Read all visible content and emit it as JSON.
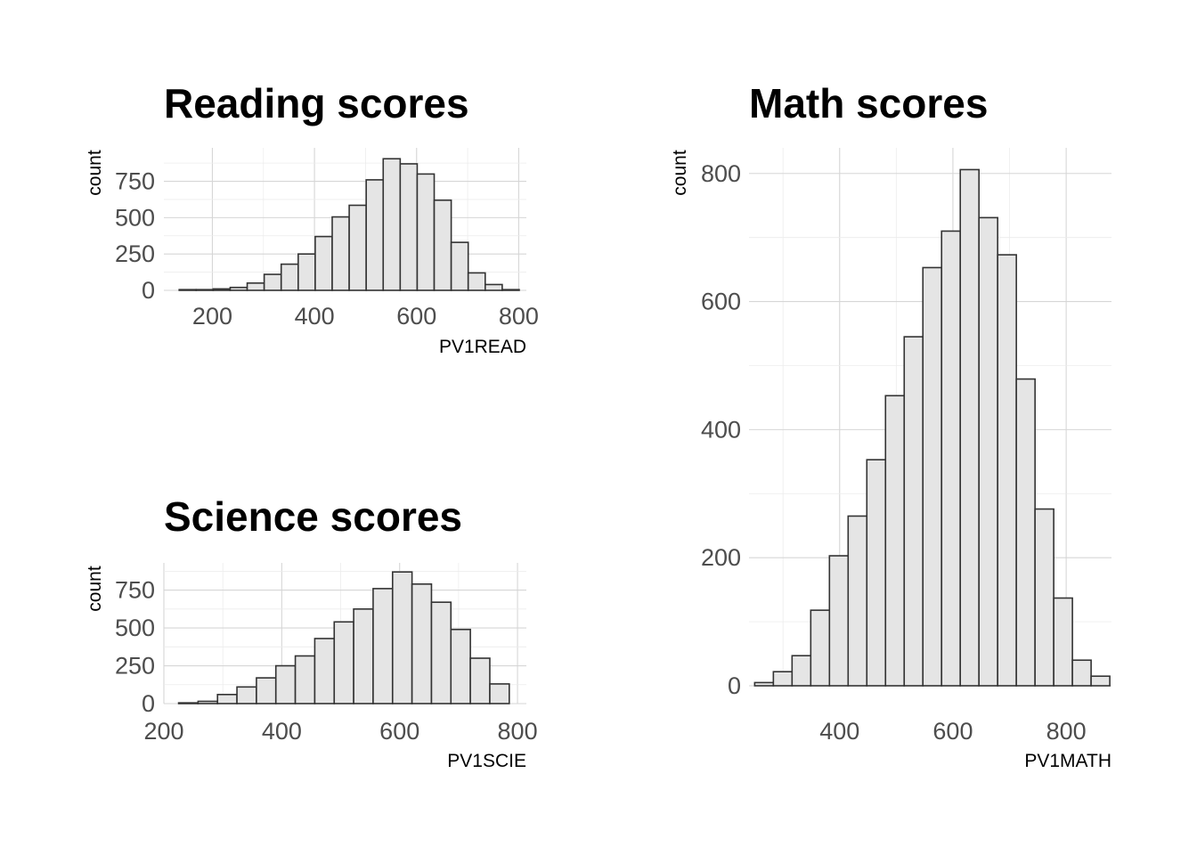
{
  "chart_data": [
    {
      "id": "reading",
      "type": "bar",
      "title": "Reading scores",
      "xlabel": "PV1READ",
      "ylabel": "count",
      "xlim": [
        105,
        815
      ],
      "ylim": [
        0,
        980
      ],
      "xticks": [
        200,
        400,
        600,
        800
      ],
      "yticks": [
        0,
        250,
        500,
        750
      ],
      "bin_width": 33.3,
      "bin_starts": [
        135,
        168.3,
        201.6,
        234.9,
        268.2,
        301.5,
        334.8,
        368.1,
        401.4,
        434.7,
        468,
        501.3,
        534.6,
        567.9,
        601.2,
        634.5,
        667.8,
        701.1,
        734.4,
        767.7
      ],
      "values": [
        5,
        5,
        10,
        20,
        50,
        110,
        180,
        250,
        370,
        505,
        585,
        760,
        905,
        870,
        800,
        620,
        330,
        120,
        40,
        5
      ],
      "grid": true
    },
    {
      "id": "science",
      "type": "bar",
      "title": "Science scores",
      "xlabel": "PV1SCIE",
      "ylabel": "count",
      "xlim": [
        200,
        815
      ],
      "ylim": [
        0,
        930
      ],
      "xticks": [
        200,
        400,
        600,
        800
      ],
      "yticks": [
        0,
        250,
        500,
        750
      ],
      "bin_width": 33,
      "bin_starts": [
        225,
        258,
        291,
        324,
        357,
        390,
        423,
        456,
        489,
        522,
        555,
        588,
        621,
        654,
        687,
        720,
        753
      ],
      "values": [
        5,
        15,
        60,
        110,
        170,
        250,
        315,
        430,
        540,
        625,
        760,
        870,
        790,
        670,
        490,
        300,
        130
      ],
      "values_tail": [],
      "grid": true
    },
    {
      "id": "math",
      "type": "bar",
      "title": "Math scores",
      "xlabel": "PV1MATH",
      "ylabel": "count",
      "xlim": [
        240,
        880
      ],
      "ylim": [
        0,
        840
      ],
      "xticks": [
        400,
        600,
        800
      ],
      "yticks": [
        0,
        200,
        400,
        600,
        800
      ],
      "bin_width": 33,
      "bin_starts": [
        250,
        283,
        316,
        349,
        382,
        415,
        448,
        481,
        514,
        547,
        580,
        613,
        646,
        679,
        712,
        745,
        778,
        811,
        844
      ],
      "values": [
        5,
        22,
        47,
        118,
        203,
        265,
        353,
        453,
        545,
        653,
        710,
        806,
        731,
        673,
        479,
        276,
        137,
        40,
        15
      ],
      "grid": true
    }
  ]
}
